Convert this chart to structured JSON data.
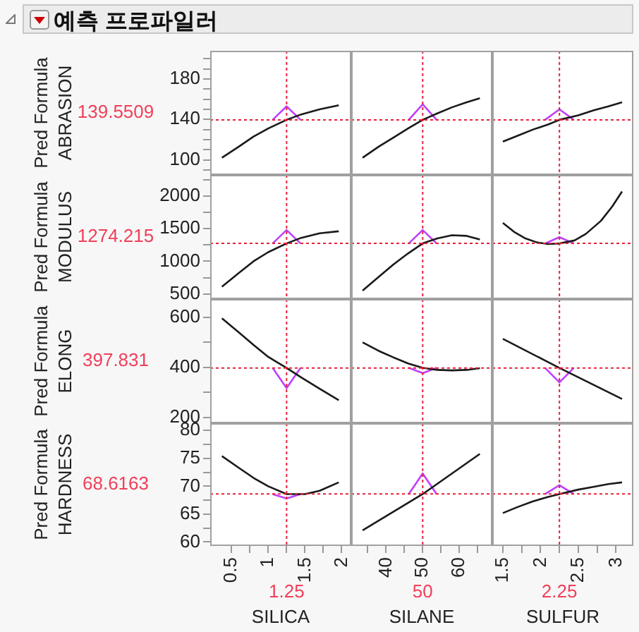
{
  "chart_data": [
    {
      "type": "line",
      "title": "예측 프로파일러",
      "ylabel": "Pred Formula\nABRASION",
      "xlim": [
        0.21,
        2.13
      ],
      "ylim": [
        85,
        208
      ],
      "tick_labels": "y",
      "yticks": [
        {
          "value": 90,
          "label": null
        },
        100,
        {
          "value": 110,
          "label": null
        },
        {
          "value": 120,
          "label": null
        },
        {
          "value": 130,
          "label": null
        },
        140,
        {
          "value": 150,
          "label": null
        },
        {
          "value": 160,
          "label": null
        },
        {
          "value": 170,
          "label": null
        },
        180,
        {
          "value": 190,
          "label": null
        },
        {
          "value": 200,
          "label": null
        }
      ],
      "annotations": [
        "139.5509"
      ],
      "ref_lines": [
        {
          "axis": "x",
          "value": 1.25,
          "color": "#e8203a",
          "line_style": "dotted"
        },
        {
          "axis": "y",
          "value": 139.5509,
          "color": "#e8203a",
          "line_style": "dotted"
        }
      ],
      "series": [
        {
          "type": "line",
          "color": "#1a1a1a",
          "x": [
            0.37,
            0.6,
            0.8,
            1.0,
            1.25,
            1.45,
            1.7,
            1.96
          ],
          "values": [
            102,
            113,
            123,
            131,
            139.6,
            145,
            150,
            154
          ]
        },
        {
          "type": "line",
          "color": "#bf3fff",
          "x": [
            1.06,
            1.25,
            1.44
          ],
          "values": [
            139.6,
            153,
            139.6
          ]
        }
      ]
    },
    {
      "type": "line",
      "xlim": [
        30.5,
        69
      ],
      "ylim": [
        85,
        208
      ],
      "tick_labels": false,
      "ref_lines": [
        {
          "axis": "x",
          "value": 50,
          "color": "#e8203a",
          "line_style": "dotted"
        },
        {
          "axis": "y",
          "value": 139.5509,
          "color": "#e8203a",
          "line_style": "dotted"
        }
      ],
      "series": [
        {
          "type": "line",
          "color": "#1a1a1a",
          "x": [
            33.6,
            38,
            42,
            46,
            50,
            54,
            58,
            62,
            65.6
          ],
          "values": [
            102,
            113,
            122,
            131,
            139.6,
            146,
            152,
            157,
            161
          ]
        },
        {
          "type": "line",
          "color": "#bf3fff",
          "x": [
            46.2,
            50,
            53.8
          ],
          "values": [
            139.6,
            155,
            139.6
          ]
        }
      ]
    },
    {
      "type": "line",
      "xlim": [
        1.36,
        3.23
      ],
      "ylim": [
        85,
        208
      ],
      "tick_labels": false,
      "ref_lines": [
        {
          "axis": "x",
          "value": 2.25,
          "color": "#e8203a",
          "line_style": "dotted"
        },
        {
          "axis": "y",
          "value": 139.5509,
          "color": "#e8203a",
          "line_style": "dotted"
        }
      ],
      "series": [
        {
          "type": "line",
          "color": "#1a1a1a",
          "x": [
            1.5,
            1.7,
            1.9,
            2.1,
            2.25,
            2.5,
            2.7,
            2.9,
            3.08
          ],
          "values": [
            118,
            124,
            130,
            135,
            139.6,
            144,
            149,
            153,
            157
          ]
        },
        {
          "type": "line",
          "color": "#bf3fff",
          "x": [
            2.06,
            2.25,
            2.44
          ],
          "values": [
            139.6,
            150,
            139.6
          ]
        }
      ]
    },
    {
      "type": "line",
      "ylabel": "Pred Formula\nMODULUS",
      "xlim": [
        0.21,
        2.13
      ],
      "ylim": [
        420,
        2325
      ],
      "tick_labels": "y",
      "yticks": [
        500,
        {
          "value": 750,
          "label": null
        },
        1000,
        {
          "value": 1250,
          "label": null
        },
        1500,
        {
          "value": 1750,
          "label": null
        },
        2000,
        {
          "value": 2250,
          "label": null
        }
      ],
      "annotations": [
        "1274.215"
      ],
      "ref_lines": [
        {
          "axis": "x",
          "value": 1.25,
          "color": "#e8203a",
          "line_style": "dotted"
        },
        {
          "axis": "y",
          "value": 1274.215,
          "color": "#e8203a",
          "line_style": "dotted"
        }
      ],
      "series": [
        {
          "type": "line",
          "color": "#1a1a1a",
          "x": [
            0.37,
            0.6,
            0.8,
            1.0,
            1.25,
            1.45,
            1.7,
            1.96
          ],
          "values": [
            610,
            820,
            1000,
            1140,
            1274,
            1360,
            1430,
            1460
          ]
        },
        {
          "type": "line",
          "color": "#bf3fff",
          "x": [
            1.06,
            1.25,
            1.44
          ],
          "values": [
            1274,
            1480,
            1274
          ]
        }
      ]
    },
    {
      "type": "line",
      "xlim": [
        30.5,
        69
      ],
      "ylim": [
        420,
        2325
      ],
      "tick_labels": false,
      "ref_lines": [
        {
          "axis": "x",
          "value": 50,
          "color": "#e8203a",
          "line_style": "dotted"
        },
        {
          "axis": "y",
          "value": 1274.215,
          "color": "#e8203a",
          "line_style": "dotted"
        }
      ],
      "series": [
        {
          "type": "line",
          "color": "#1a1a1a",
          "x": [
            33.6,
            38,
            42,
            46,
            50,
            54,
            58,
            62,
            65.6
          ],
          "values": [
            550,
            760,
            950,
            1120,
            1274,
            1350,
            1400,
            1390,
            1335
          ]
        },
        {
          "type": "line",
          "color": "#bf3fff",
          "x": [
            46.2,
            50,
            53.8
          ],
          "values": [
            1274,
            1480,
            1274
          ]
        }
      ]
    },
    {
      "type": "line",
      "xlim": [
        1.36,
        3.23
      ],
      "ylim": [
        420,
        2325
      ],
      "tick_labels": false,
      "ref_lines": [
        {
          "axis": "x",
          "value": 2.25,
          "color": "#e8203a",
          "line_style": "dotted"
        },
        {
          "axis": "y",
          "value": 1274.215,
          "color": "#e8203a",
          "line_style": "dotted"
        }
      ],
      "series": [
        {
          "type": "line",
          "color": "#1a1a1a",
          "x": [
            1.5,
            1.65,
            1.8,
            1.95,
            2.1,
            2.25,
            2.45,
            2.6,
            2.8,
            2.95,
            3.08
          ],
          "values": [
            1590,
            1450,
            1350,
            1290,
            1265,
            1274,
            1320,
            1420,
            1620,
            1840,
            2070
          ]
        },
        {
          "type": "line",
          "color": "#bf3fff",
          "x": [
            2.06,
            2.25,
            2.44
          ],
          "values": [
            1274,
            1370,
            1274
          ]
        }
      ]
    },
    {
      "type": "line",
      "ylabel": "Pred Formula\nELONG",
      "xlim": [
        0.21,
        2.13
      ],
      "ylim": [
        177,
        673
      ],
      "tick_labels": "y",
      "yticks": [
        200,
        {
          "value": 300,
          "label": null
        },
        400,
        {
          "value": 500,
          "label": null
        },
        600
      ],
      "annotations": [
        "397.831"
      ],
      "ref_lines": [
        {
          "axis": "x",
          "value": 1.25,
          "color": "#e8203a",
          "line_style": "dotted"
        },
        {
          "axis": "y",
          "value": 397.831,
          "color": "#e8203a",
          "line_style": "dotted"
        }
      ],
      "series": [
        {
          "type": "line",
          "color": "#1a1a1a",
          "x": [
            0.37,
            0.6,
            0.8,
            1.0,
            1.25,
            1.45,
            1.7,
            1.96
          ],
          "values": [
            596,
            540,
            490,
            442,
            398,
            360,
            315,
            269
          ]
        },
        {
          "type": "line",
          "color": "#bf3fff",
          "x": [
            1.06,
            1.25,
            1.44
          ],
          "values": [
            398,
            317,
            398
          ]
        }
      ]
    },
    {
      "type": "line",
      "xlim": [
        30.5,
        69
      ],
      "ylim": [
        177,
        673
      ],
      "tick_labels": false,
      "ref_lines": [
        {
          "axis": "x",
          "value": 50,
          "color": "#e8203a",
          "line_style": "dotted"
        },
        {
          "axis": "y",
          "value": 397.831,
          "color": "#e8203a",
          "line_style": "dotted"
        }
      ],
      "series": [
        {
          "type": "line",
          "color": "#1a1a1a",
          "x": [
            33.6,
            38,
            42,
            46,
            50,
            54,
            58,
            62,
            65.6
          ],
          "values": [
            500,
            466,
            440,
            416,
            398,
            390,
            388,
            390,
            397
          ]
        },
        {
          "type": "line",
          "color": "#bf3fff",
          "x": [
            46.2,
            50,
            53.8
          ],
          "values": [
            398,
            377,
            398
          ]
        }
      ]
    },
    {
      "type": "line",
      "xlim": [
        1.36,
        3.23
      ],
      "ylim": [
        177,
        673
      ],
      "tick_labels": false,
      "ref_lines": [
        {
          "axis": "x",
          "value": 2.25,
          "color": "#e8203a",
          "line_style": "dotted"
        },
        {
          "axis": "y",
          "value": 397.831,
          "color": "#e8203a",
          "line_style": "dotted"
        }
      ],
      "series": [
        {
          "type": "line",
          "color": "#1a1a1a",
          "x": [
            1.5,
            2.25,
            3.08
          ],
          "values": [
            514,
            398,
            274
          ]
        },
        {
          "type": "line",
          "color": "#bf3fff",
          "x": [
            2.06,
            2.25,
            2.44
          ],
          "values": [
            398,
            340,
            398
          ]
        }
      ]
    },
    {
      "type": "line",
      "ylabel": "Pred Formula\nHARDNESS",
      "xlabel": "SILICA",
      "xlim": [
        0.21,
        2.13
      ],
      "ylim": [
        59.3,
        81.3
      ],
      "yticks": [
        60,
        {
          "value": 62.5,
          "label": null
        },
        65,
        {
          "value": 67.5,
          "label": null
        },
        70,
        {
          "value": 72.5,
          "label": null
        },
        75,
        {
          "value": 77.5,
          "label": null
        },
        80
      ],
      "xticks": [
        0.5,
        {
          "value": 0.75,
          "label": null
        },
        1,
        {
          "value": 1.25,
          "label": null
        },
        1.5,
        {
          "value": 1.75,
          "label": null
        },
        2
      ],
      "annotations": [
        "68.6163",
        "1.25"
      ],
      "ref_lines": [
        {
          "axis": "x",
          "value": 1.25,
          "color": "#e8203a",
          "line_style": "dotted"
        },
        {
          "axis": "y",
          "value": 68.6163,
          "color": "#e8203a",
          "line_style": "dotted"
        }
      ],
      "series": [
        {
          "type": "line",
          "color": "#1a1a1a",
          "x": [
            0.37,
            0.6,
            0.8,
            1.0,
            1.25,
            1.5,
            1.7,
            1.96
          ],
          "values": [
            75.4,
            73.3,
            71.5,
            70.0,
            68.6,
            68.6,
            69.2,
            70.7
          ]
        },
        {
          "type": "line",
          "color": "#bf3fff",
          "x": [
            1.06,
            1.25,
            1.44
          ],
          "values": [
            68.6,
            67.8,
            68.6
          ]
        }
      ]
    },
    {
      "type": "line",
      "xlabel": "SILANE",
      "xlim": [
        30.5,
        69
      ],
      "ylim": [
        59.3,
        81.3
      ],
      "tick_labels": "x",
      "xticks": [
        {
          "value": 35,
          "label": null
        },
        40,
        {
          "value": 45,
          "label": null
        },
        50,
        {
          "value": 55,
          "label": null
        },
        60,
        {
          "value": 65,
          "label": null
        }
      ],
      "annotations": [
        "50"
      ],
      "ref_lines": [
        {
          "axis": "x",
          "value": 50,
          "color": "#e8203a",
          "line_style": "dotted"
        },
        {
          "axis": "y",
          "value": 68.6163,
          "color": "#e8203a",
          "line_style": "dotted"
        }
      ],
      "series": [
        {
          "type": "line",
          "color": "#1a1a1a",
          "x": [
            33.6,
            50,
            65.6
          ],
          "values": [
            62.1,
            68.6,
            75.8
          ]
        },
        {
          "type": "line",
          "color": "#bf3fff",
          "x": [
            46.2,
            50,
            53.8
          ],
          "values": [
            68.6,
            72.3,
            68.6
          ]
        }
      ]
    },
    {
      "type": "line",
      "xlabel": "SULFUR",
      "xlim": [
        1.36,
        3.23
      ],
      "ylim": [
        59.3,
        81.3
      ],
      "tick_labels": "x",
      "xticks": [
        1.5,
        {
          "value": 1.75,
          "label": null
        },
        2,
        {
          "value": 2.25,
          "label": null
        },
        2.5,
        {
          "value": 2.75,
          "label": null
        },
        3
      ],
      "annotations": [
        "2.25"
      ],
      "ref_lines": [
        {
          "axis": "x",
          "value": 2.25,
          "color": "#e8203a",
          "line_style": "dotted"
        },
        {
          "axis": "y",
          "value": 68.6163,
          "color": "#e8203a",
          "line_style": "dotted"
        }
      ],
      "series": [
        {
          "type": "line",
          "color": "#1a1a1a",
          "x": [
            1.5,
            1.7,
            1.9,
            2.1,
            2.25,
            2.5,
            2.7,
            2.9,
            3.08
          ],
          "values": [
            65.2,
            66.3,
            67.3,
            68.1,
            68.6,
            69.4,
            69.9,
            70.4,
            70.7
          ]
        },
        {
          "type": "line",
          "color": "#bf3fff",
          "x": [
            2.06,
            2.25,
            2.44
          ],
          "values": [
            68.6,
            70.2,
            68.6
          ]
        }
      ]
    }
  ]
}
